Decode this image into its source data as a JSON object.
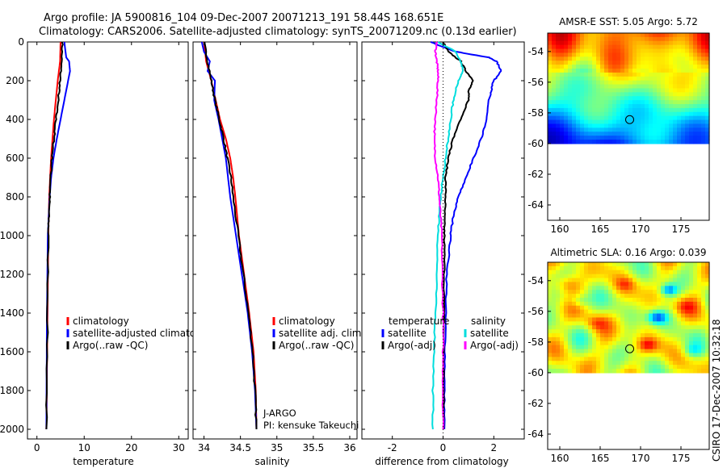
{
  "header": {
    "line1": "Argo profile: JA 5900816_104 09-Dec-2007 20071213_191 58.44S 168.651E",
    "line2": "Climatology: CARS2006. Satellite-adjusted climatology: synTS_20071209.nc (0.13d earlier)"
  },
  "side_label": "CSIRO 17-Dec-2007 10:32:18",
  "colors": {
    "climatology": "#ff0000",
    "satellite": "#0000ff",
    "argo": "#000000",
    "salinity_satellite": "#00dddd",
    "salinity_argo": "#ff00ff",
    "map_blank": "#ffffff"
  },
  "chart_data": [
    {
      "id": "temperature",
      "type": "line",
      "xlabel": "temperature",
      "xlim": [
        -2,
        32
      ],
      "xticks": [
        "0",
        "10",
        "20",
        "30"
      ],
      "xtick_values": [
        0,
        10,
        20,
        30
      ],
      "ylim": [
        2050,
        0
      ],
      "yticks": [
        "0",
        "200",
        "400",
        "600",
        "800",
        "1000",
        "1200",
        "1400",
        "1600",
        "1800",
        "2000"
      ],
      "ytick_values": [
        0,
        200,
        400,
        600,
        800,
        1000,
        1200,
        1400,
        1600,
        1800,
        2000
      ],
      "legend": [
        "climatology",
        "satellite-adjusted climatology",
        "Argo(..raw -QC)"
      ],
      "series": [
        {
          "name": "climatology",
          "color": "#ff0000",
          "depth": [
            0,
            100,
            200,
            300,
            400,
            500,
            600,
            700,
            800,
            900,
            1000,
            1500,
            2000
          ],
          "values": [
            5.0,
            4.9,
            4.4,
            4.0,
            3.6,
            3.3,
            3.0,
            2.8,
            2.6,
            2.5,
            2.4,
            2.2,
            2.0
          ]
        },
        {
          "name": "satellite-adjusted climatology",
          "color": "#0000ff",
          "depth": [
            0,
            80,
            100,
            150,
            200,
            300,
            400,
            500,
            600,
            700,
            800,
            900,
            1000,
            1500,
            2000
          ],
          "values": [
            5.8,
            6.2,
            6.8,
            7.0,
            6.6,
            5.8,
            5.0,
            4.2,
            3.5,
            3.0,
            2.7,
            2.5,
            2.3,
            2.1,
            2.0
          ]
        },
        {
          "name": "Argo(..raw -QC)",
          "color": "#000000",
          "depth": [
            0,
            100,
            200,
            300,
            400,
            500,
            600,
            700,
            800,
            900,
            1000,
            1500,
            2000
          ],
          "values": [
            5.4,
            5.2,
            4.9,
            4.5,
            4.0,
            3.6,
            3.2,
            2.9,
            2.7,
            2.5,
            2.4,
            2.2,
            2.0
          ]
        }
      ]
    },
    {
      "id": "salinity",
      "type": "line",
      "xlabel": "salinity",
      "xlim": [
        33.85,
        36.1
      ],
      "xticks": [
        "34",
        "34.5",
        "35",
        "35.5",
        "36"
      ],
      "xtick_values": [
        34,
        34.5,
        35,
        35.5,
        36
      ],
      "ylim": [
        2050,
        0
      ],
      "legend": [
        "climatology",
        "satellite adj. clim.",
        "Argo(..raw -QC)"
      ],
      "annotation": [
        "J-ARGO",
        "PI: kensuke Takeuchi"
      ],
      "series": [
        {
          "name": "climatology",
          "color": "#ff0000",
          "depth": [
            0,
            100,
            200,
            300,
            400,
            500,
            600,
            700,
            800,
            1000,
            1200,
            1400,
            1600,
            1800,
            2000
          ],
          "values": [
            34.0,
            34.03,
            34.1,
            34.16,
            34.22,
            34.3,
            34.36,
            34.4,
            34.43,
            34.48,
            34.55,
            34.62,
            34.68,
            34.71,
            34.72
          ]
        },
        {
          "name": "satellite adj. clim.",
          "color": "#0000ff",
          "depth": [
            0,
            50,
            100,
            150,
            200,
            300,
            400,
            500,
            600,
            700,
            800,
            1000,
            1200,
            1400,
            1600,
            1800,
            2000
          ],
          "values": [
            33.97,
            34.0,
            34.08,
            34.05,
            34.15,
            34.14,
            34.2,
            34.25,
            34.3,
            34.33,
            34.36,
            34.44,
            34.52,
            34.6,
            34.66,
            34.7,
            34.72
          ]
        },
        {
          "name": "Argo(..raw -QC)",
          "color": "#000000",
          "depth": [
            0,
            100,
            200,
            300,
            400,
            500,
            600,
            700,
            800,
            1000,
            1200,
            1400,
            1600,
            1800,
            2000
          ],
          "values": [
            34.0,
            34.05,
            34.1,
            34.15,
            34.21,
            34.27,
            34.32,
            34.37,
            34.4,
            34.47,
            34.54,
            34.61,
            34.67,
            34.7,
            34.72
          ]
        }
      ]
    },
    {
      "id": "difference",
      "type": "line",
      "xlabel": "difference from climatology",
      "xlim": [
        -3.2,
        3.2
      ],
      "xticks": [
        "-2",
        "0",
        "2"
      ],
      "xtick_values": [
        -2,
        0,
        2
      ],
      "ylim": [
        2050,
        0
      ],
      "legend_temperature": {
        "title": "temperature",
        "entries": [
          "satellite",
          "Argo(-adj)"
        ]
      },
      "legend_salinity": {
        "title": "salinity",
        "entries": [
          "satellite",
          "Argo(-adj)"
        ]
      },
      "series": [
        {
          "name": "temperature satellite",
          "color": "#0000ff",
          "depth": [
            0,
            50,
            80,
            100,
            150,
            200,
            250,
            300,
            400,
            500,
            600,
            700,
            800,
            900,
            1000,
            1200,
            1400,
            1600,
            1800,
            2000
          ],
          "values": [
            -0.5,
            0.5,
            1.8,
            2.1,
            2.3,
            2.0,
            1.9,
            1.8,
            1.7,
            1.5,
            1.2,
            0.9,
            0.6,
            0.4,
            0.3,
            0.15,
            0.1,
            0.08,
            0.05,
            0.05
          ]
        },
        {
          "name": "temperature Argo(-adj)",
          "color": "#000000",
          "depth": [
            0,
            50,
            100,
            150,
            200,
            250,
            300,
            400,
            500,
            600,
            700,
            800,
            900,
            1000,
            1200,
            1400,
            1600,
            1800,
            2000
          ],
          "values": [
            0.0,
            0.2,
            0.7,
            0.9,
            1.2,
            1.0,
            1.0,
            0.7,
            0.4,
            0.2,
            0.1,
            0.1,
            0.05,
            0.05,
            0.05,
            0.03,
            0.02,
            0.02,
            0.02
          ]
        },
        {
          "name": "salinity satellite",
          "color": "#00dddd",
          "depth": [
            0,
            50,
            100,
            150,
            200,
            300,
            400,
            500,
            600,
            700,
            800,
            900,
            1000,
            1200,
            1400,
            1600,
            1800,
            2000
          ],
          "values": [
            -0.2,
            0.5,
            0.7,
            0.8,
            0.6,
            0.4,
            0.3,
            0.2,
            0.1,
            0.0,
            -0.1,
            -0.15,
            -0.2,
            -0.25,
            -0.3,
            -0.35,
            -0.4,
            -0.4
          ]
        },
        {
          "name": "salinity Argo(-adj)",
          "color": "#ff00ff",
          "depth": [
            0,
            50,
            100,
            150,
            200,
            300,
            400,
            500,
            600,
            700,
            800,
            900,
            1000,
            1200,
            1400,
            1600,
            1800,
            2000
          ],
          "values": [
            -0.25,
            -0.3,
            -0.25,
            -0.2,
            -0.2,
            -0.25,
            -0.3,
            -0.35,
            -0.3,
            -0.2,
            -0.15,
            -0.1,
            -0.05,
            -0.03,
            0.0,
            0.0,
            0.0,
            0.0
          ]
        }
      ]
    },
    {
      "id": "sst_map",
      "type": "heatmap",
      "title": "AMSR-E SST: 5.05 Argo: 5.72",
      "xlim": [
        158.5,
        178.5
      ],
      "xticks": [
        "160",
        "165",
        "170",
        "175"
      ],
      "xtick_values": [
        160,
        165,
        170,
        175
      ],
      "ylim": [
        -65,
        -52.8
      ],
      "yticks": [
        "-54",
        "-56",
        "-58",
        "-60",
        "-62",
        "-64"
      ],
      "ytick_values": [
        -54,
        -56,
        -58,
        -60,
        -62,
        -64
      ],
      "data_ylim": [
        -60,
        -52.8
      ],
      "marker": {
        "lon": 168.651,
        "lat": -58.44
      },
      "colormap": "jet",
      "field_description_values": {
        "north_value": 0.75,
        "south_value": 0.2
      }
    },
    {
      "id": "sla_map",
      "type": "heatmap",
      "title": "Altimetric SLA: 0.16 Argo: 0.039",
      "xlim": [
        158.5,
        178.5
      ],
      "xticks": [
        "160",
        "165",
        "170",
        "175"
      ],
      "xtick_values": [
        160,
        165,
        170,
        175
      ],
      "ylim": [
        -65,
        -52.8
      ],
      "yticks": [
        "-54",
        "-56",
        "-58",
        "-60",
        "-62",
        "-64"
      ],
      "ytick_values": [
        -54,
        -56,
        -58,
        -60,
        -62,
        -64
      ],
      "data_ylim": [
        -60,
        -52.8
      ],
      "marker": {
        "lon": 168.651,
        "lat": -58.44
      },
      "colormap": "jet"
    }
  ]
}
